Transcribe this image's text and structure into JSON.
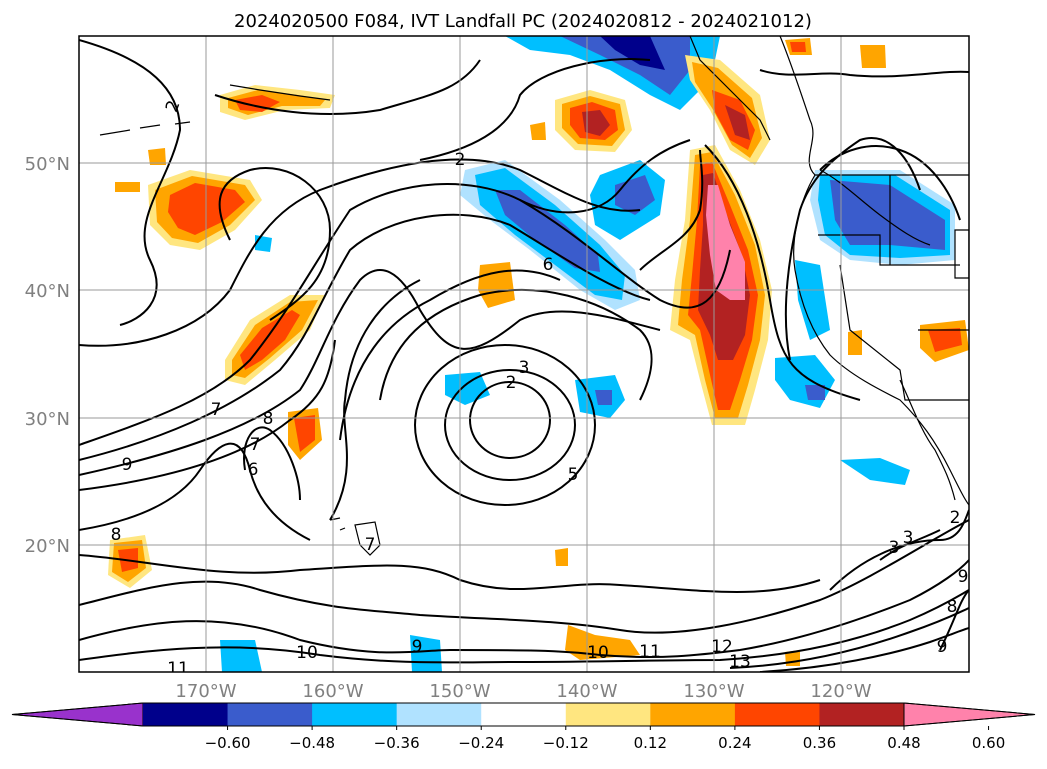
{
  "title": "2024020500 F084, IVT Landfall PC (2024020812 - 2024021012)",
  "map": {
    "lon_ticks": [
      "170°W",
      "160°W",
      "150°W",
      "140°W",
      "130°W",
      "120°W"
    ],
    "lat_ticks": [
      "50°N",
      "40°N",
      "30°N",
      "20°N"
    ],
    "lon_range": [
      -180,
      -110
    ],
    "lat_range": [
      10,
      60
    ],
    "grid": true,
    "tick_label_color": "#808080"
  },
  "contour_labels": [
    "2",
    "2",
    "6",
    "3",
    "2",
    "5",
    "3",
    "3",
    "2",
    "7",
    "6",
    "8",
    "9",
    "8",
    "7",
    "10",
    "9",
    "10",
    "11",
    "12",
    "13",
    "11",
    "9",
    "8",
    "9",
    "7"
  ],
  "colorbar": {
    "ticks": [
      "−0.60",
      "−0.48",
      "−0.36",
      "−0.24",
      "−0.12",
      "0.12",
      "0.24",
      "0.36",
      "0.48",
      "0.60"
    ],
    "colors": [
      "#9932cc",
      "#00008b",
      "#3a5ccc",
      "#00bfff",
      "#b0e2ff",
      "#ffffff",
      "#ffe680",
      "#ffa500",
      "#ff4500",
      "#b22222",
      "#ff82ab"
    ],
    "extend": "both"
  }
}
